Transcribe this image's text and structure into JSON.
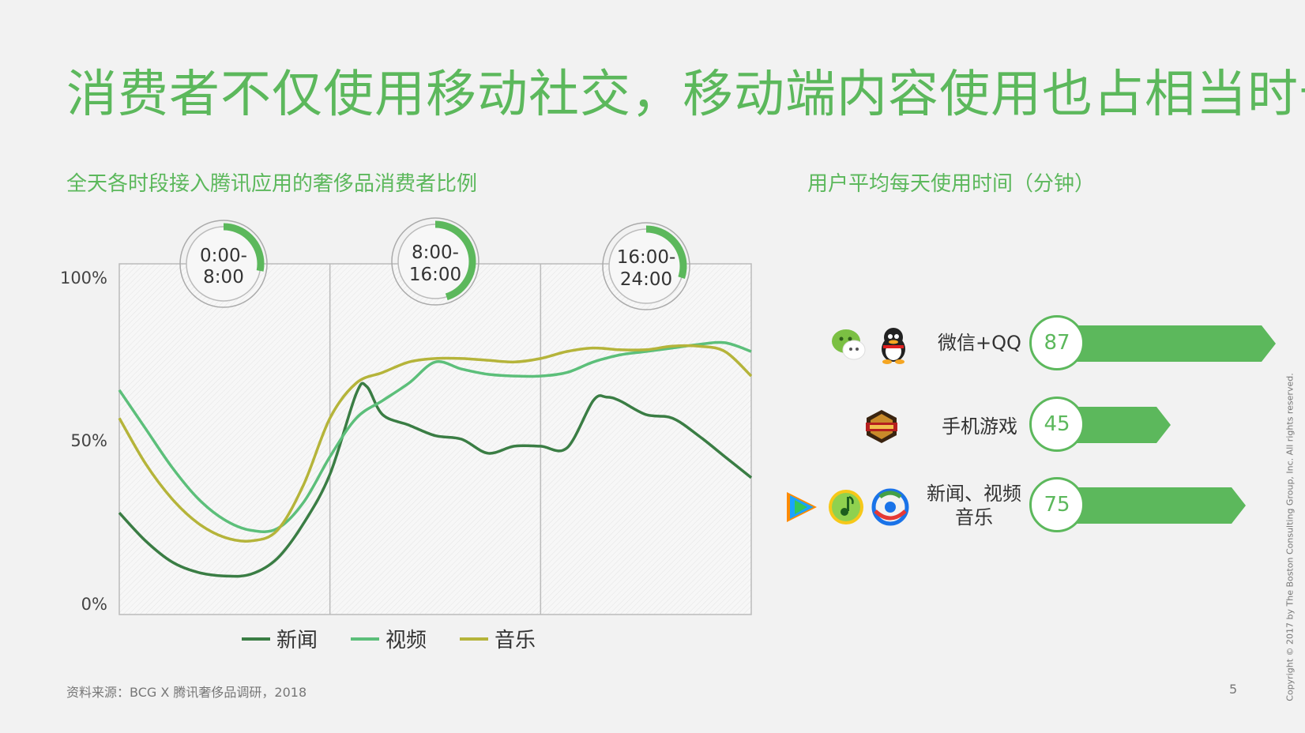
{
  "title": "消费者不仅使用移动社交，移动端内容使用也占相当时长",
  "left_subtitle": "全天各时段接入腾讯应用的奢侈品消费者比例",
  "right_subtitle": "用户平均每天使用时间（分钟）",
  "footer": {
    "source": "资料来源：BCG X 腾讯奢侈品调研，2018",
    "page": "5",
    "copyright": "Copyright © 2017 by The Boston Consulting Group, Inc. All rights reserved."
  },
  "colors": {
    "accent": "#5cb85c",
    "news": "#3a7d44",
    "video": "#5cbf7a",
    "music": "#b5b43a"
  },
  "chart_data": [
    {
      "type": "line",
      "title": "",
      "xlabel": "",
      "ylabel": "",
      "y_tick_labels": [
        "100%",
        "50%",
        "0%"
      ],
      "ylim": [
        0,
        100
      ],
      "xlim": [
        0,
        24
      ],
      "grid": "vertical dividers at 8 and 16 hours",
      "legend_position": "bottom",
      "period_badges": [
        {
          "label_line1": "0:00-",
          "label_line2": "8:00",
          "progress": 0.28
        },
        {
          "label_line1": "8:00-",
          "label_line2": "16:00",
          "progress": 0.45
        },
        {
          "label_line1": "16:00-",
          "label_line2": "24:00",
          "progress": 0.3
        }
      ],
      "series": [
        {
          "name": "新闻",
          "color": "#3a7d44",
          "x": [
            0,
            1,
            2,
            3,
            4,
            5,
            6,
            7,
            8,
            9,
            9.4,
            10,
            11,
            12,
            13,
            14,
            15,
            16,
            17,
            18,
            18.5,
            19,
            20,
            21,
            22,
            23,
            24
          ],
          "y": [
            29,
            21,
            15,
            12,
            11,
            11.5,
            16,
            26,
            40,
            63,
            65,
            57,
            54,
            51,
            50,
            46,
            48,
            48,
            47.5,
            61,
            62,
            61,
            57,
            56,
            51,
            45,
            39
          ]
        },
        {
          "name": "视频",
          "color": "#5cbf7a",
          "x": [
            0,
            1,
            2,
            3,
            4,
            5,
            6,
            7,
            8,
            9,
            10,
            11,
            12,
            13,
            14,
            15,
            16,
            17,
            18,
            19,
            20,
            21,
            22,
            23,
            24
          ],
          "y": [
            64,
            53,
            42,
            33,
            27,
            24,
            24.5,
            32,
            45,
            56,
            61,
            66,
            72,
            70,
            68.5,
            68,
            68,
            69,
            72,
            74,
            75,
            76,
            77,
            77.5,
            75
          ]
        },
        {
          "name": "音乐",
          "color": "#b5b43a",
          "x": [
            0,
            1,
            2,
            3,
            4,
            5,
            6,
            7,
            8,
            9,
            10,
            11,
            12,
            13,
            14,
            15,
            16,
            17,
            18,
            19,
            20,
            21,
            22,
            23,
            24
          ],
          "y": [
            56,
            43,
            33,
            26,
            22,
            21,
            24,
            37,
            56,
            66,
            69,
            72,
            73,
            73,
            72.5,
            72,
            73,
            75,
            76,
            75.5,
            75.5,
            76.5,
            76.5,
            75,
            68
          ]
        }
      ]
    },
    {
      "type": "bar",
      "title": "",
      "categories": [
        "微信+QQ",
        "手机游戏",
        "新闻、视频音乐"
      ],
      "values": [
        87,
        45,
        75
      ],
      "value_labels": [
        "87",
        "45",
        "75"
      ],
      "label_lines": [
        [
          "微信+QQ"
        ],
        [
          "手机游戏"
        ],
        [
          "新闻、视频",
          "音乐"
        ]
      ],
      "icons": [
        [
          "wechat-icon",
          "qq-icon"
        ],
        [
          "game-icon"
        ],
        [
          "tencent-video-icon",
          "qq-music-icon",
          "tencent-news-icon"
        ]
      ]
    }
  ]
}
